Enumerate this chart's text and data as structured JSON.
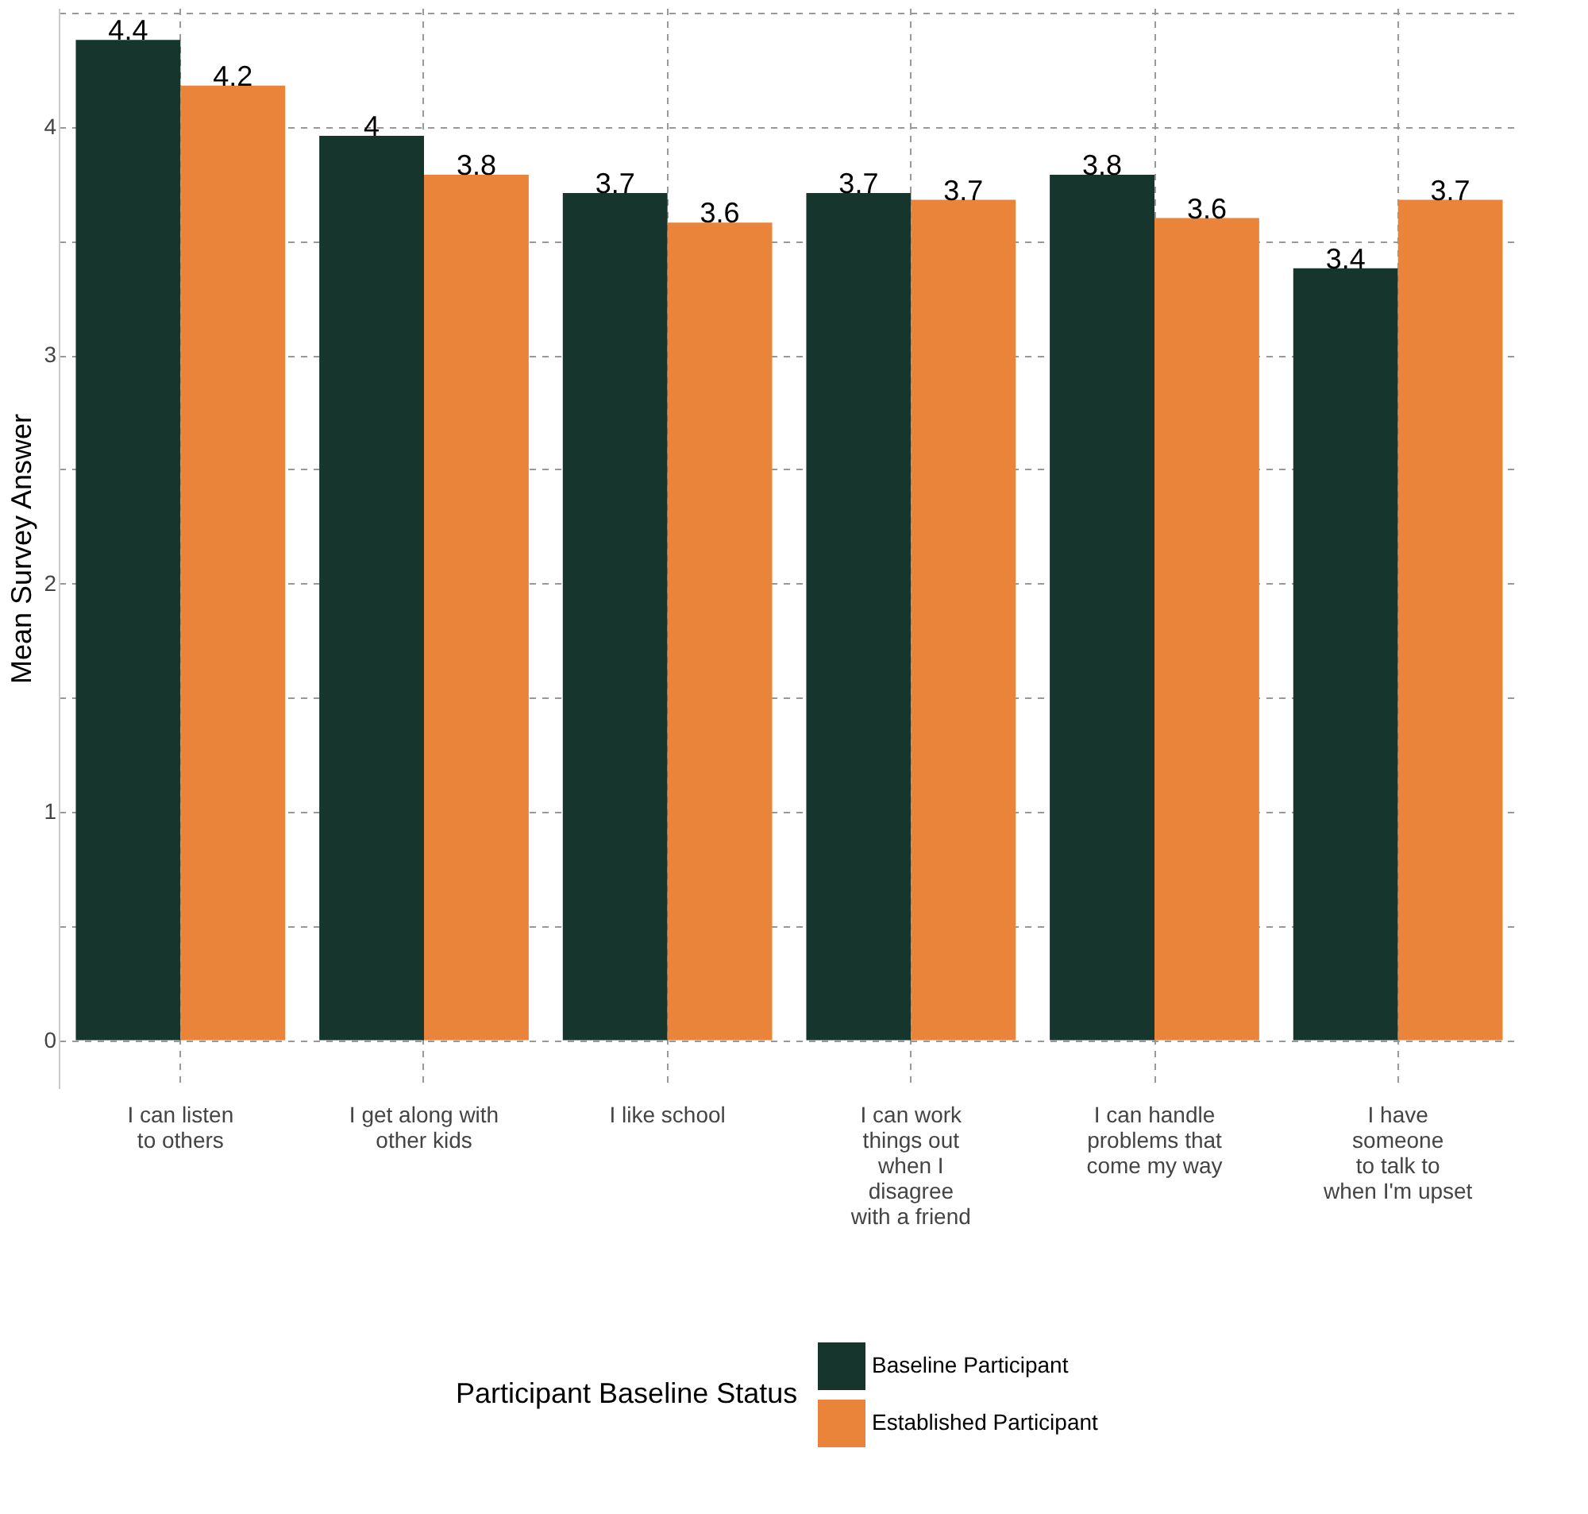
{
  "chart_data": {
    "type": "bar",
    "categories": [
      "I can listen\nto others",
      "I get along with\nother kids",
      "I like school",
      "I can work\nthings out\nwhen I\ndisagree\nwith a friend",
      "I can handle\nproblems that\ncome my way",
      "I have\nsomeone\nto talk to\nwhen I'm upset"
    ],
    "series": [
      {
        "name": "Baseline Participant",
        "color": "#15352d",
        "values": [
          4.38,
          3.96,
          3.71,
          3.71,
          3.79,
          3.38
        ],
        "value_labels": [
          "4.4",
          "4",
          "3.7",
          "3.7",
          "3.8",
          "3.4"
        ]
      },
      {
        "name": "Established Participant",
        "color": "#ea843b",
        "values": [
          4.18,
          3.79,
          3.58,
          3.68,
          3.6,
          3.68
        ],
        "value_labels": [
          "4.2",
          "3.8",
          "3.6",
          "3.7",
          "3.6",
          "3.7"
        ]
      }
    ],
    "ylabel": "Mean Survey Answer",
    "legend_title": "Participant Baseline Status",
    "ylim": [
      -0.21,
      4.52
    ],
    "yticks": [
      0,
      {
        "value": 0.5,
        "label": null
      },
      1,
      {
        "value": 1.5,
        "label": null
      },
      2,
      {
        "value": 2.5,
        "label": null
      },
      3,
      {
        "value": 3.5,
        "label": null
      },
      4,
      {
        "value": 4.5,
        "label": null
      }
    ],
    "grid": true,
    "legend": "bottom"
  }
}
